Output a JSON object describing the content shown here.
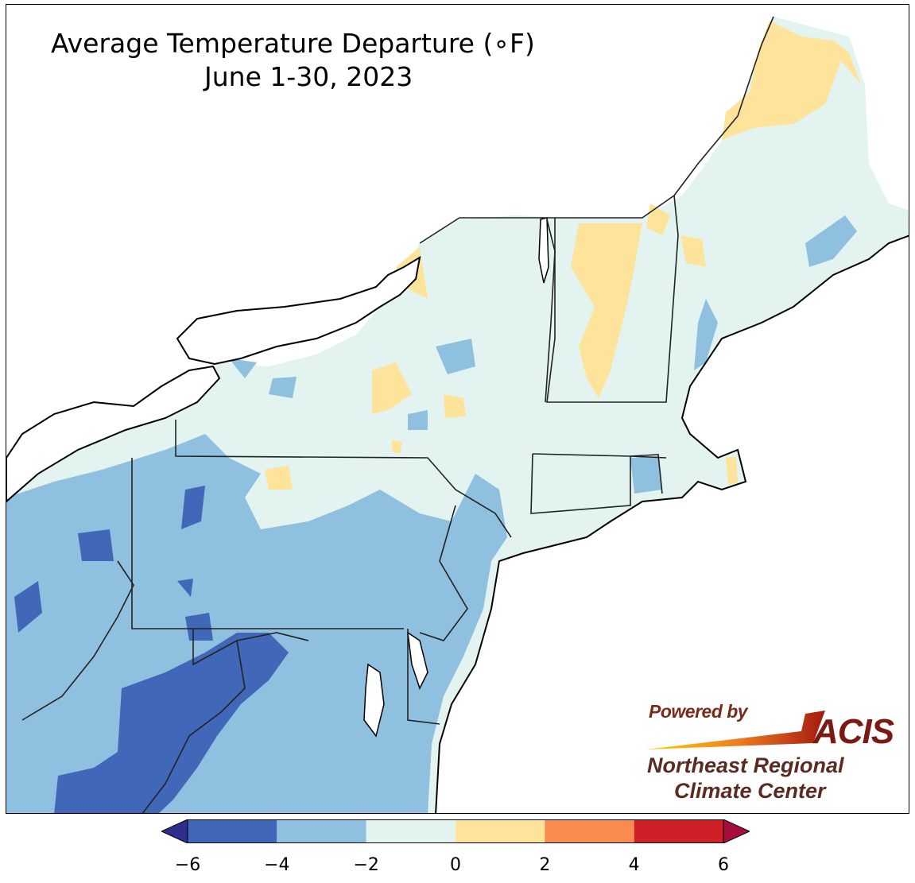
{
  "map": {
    "title_line1": "Average Temperature Departure (∘F)",
    "title_line2": "June 1-30, 2023",
    "region": "Northeast United States",
    "variable": "Average Temperature Departure",
    "units": "°F",
    "period": "June 1-30, 2023"
  },
  "legend": {
    "bins": [
      {
        "range": [
          -6,
          -4
        ],
        "color": "#4067b8"
      },
      {
        "range": [
          -4,
          -2
        ],
        "color": "#8fc0df"
      },
      {
        "range": [
          -2,
          0
        ],
        "color": "#e3f3ef"
      },
      {
        "range": [
          0,
          2
        ],
        "color": "#fde49a"
      },
      {
        "range": [
          2,
          4
        ],
        "color": "#f98b50"
      },
      {
        "range": [
          4,
          6
        ],
        "color": "#cf2027"
      }
    ],
    "under_color": "#2f2d8e",
    "over_color": "#a50d3a",
    "tick_labels": [
      "−6",
      "−4",
      "−2",
      "0",
      "2",
      "4",
      "6"
    ]
  },
  "logo": {
    "powered_by": "Powered by",
    "acis": "ACIS",
    "org_line1": "Northeast Regional",
    "org_line2": "Climate Center"
  },
  "colors": {
    "water": "#ffffff",
    "border": "#222222",
    "county": "#9aa9a6"
  }
}
